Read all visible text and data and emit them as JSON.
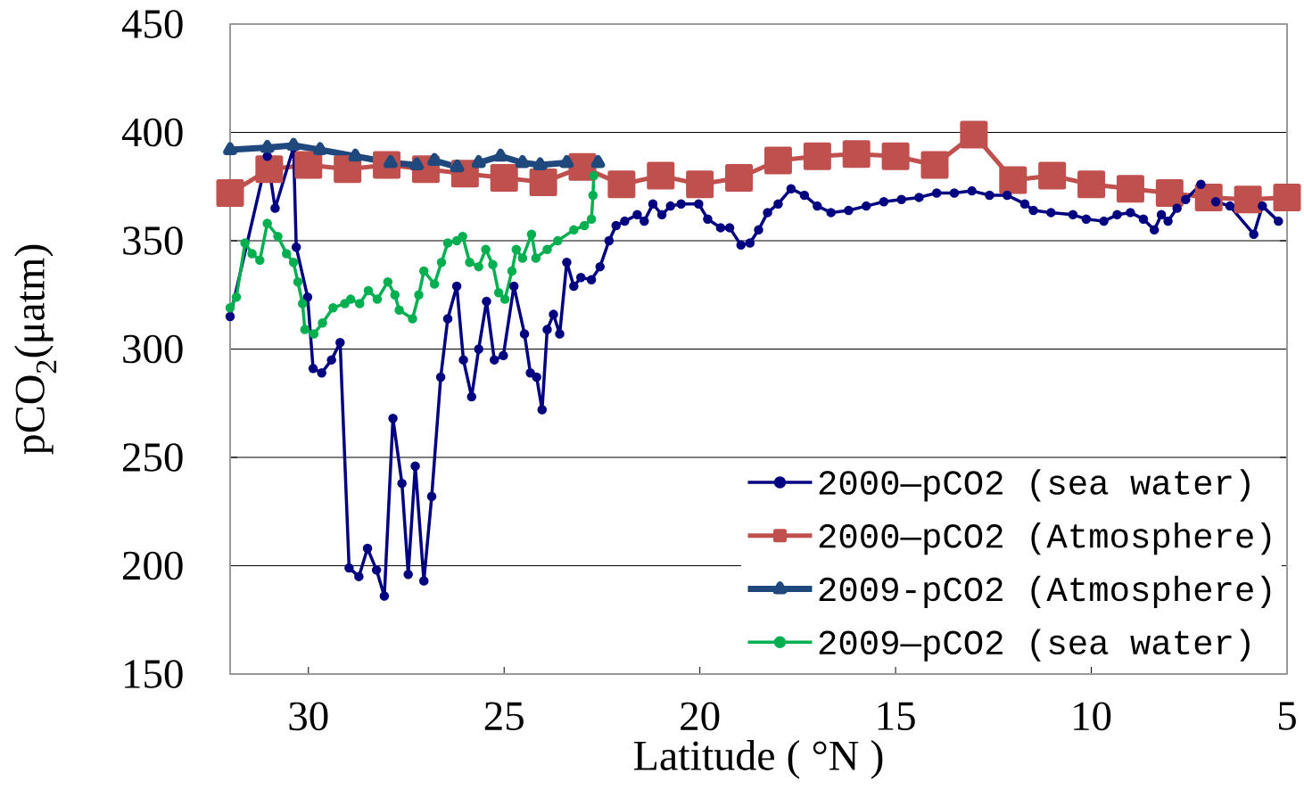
{
  "chart_data": {
    "type": "line",
    "xlabel": "Latitude ( °N )",
    "ylabel": "pCO$_{2}$(μatm)",
    "xlim": [
      32,
      5
    ],
    "xticks": [
      30,
      25,
      20,
      15,
      10,
      5
    ],
    "ylim": [
      150,
      450
    ],
    "yticks": [
      150,
      200,
      250,
      300,
      350,
      400,
      450
    ],
    "grid": "y",
    "legend": "bottom right",
    "line_style": "solid",
    "series": [
      {
        "name": "2000—pCO2 (sea water)",
        "color": "#000080",
        "marker": "circle",
        "x": [
          32.0,
          31.05,
          30.85,
          30.38,
          30.31,
          30.02,
          29.88,
          29.66,
          29.41,
          29.19,
          28.96,
          28.71,
          28.49,
          28.26,
          28.06,
          27.84,
          27.61,
          27.45,
          27.27,
          27.05,
          26.85,
          26.62,
          26.44,
          26.21,
          26.04,
          25.83,
          25.65,
          25.45,
          25.25,
          25.02,
          24.75,
          24.48,
          24.33,
          24.17,
          24.03,
          23.9,
          23.74,
          23.58,
          23.4,
          23.22,
          23.04,
          22.77,
          22.55,
          22.32,
          22.14,
          21.92,
          21.6,
          21.42,
          21.2,
          20.97,
          20.75,
          20.48,
          20.03,
          19.8,
          19.47,
          19.24,
          18.95,
          18.72,
          18.5,
          18.27,
          18.0,
          17.67,
          17.33,
          17.0,
          16.65,
          16.2,
          15.75,
          15.3,
          14.85,
          14.4,
          13.95,
          13.5,
          13.05,
          12.6,
          12.15,
          11.7,
          11.48,
          11.03,
          10.47,
          10.13,
          9.68,
          9.34,
          9.0,
          8.67,
          8.39,
          8.21,
          8.04,
          7.81,
          7.59,
          7.2,
          6.82,
          6.46,
          5.85,
          5.63,
          5.22
        ],
        "values": [
          315,
          389,
          365,
          393,
          347,
          324,
          291,
          289,
          295,
          303,
          199,
          195,
          208,
          198,
          186,
          268,
          238,
          196,
          246,
          193,
          232,
          287,
          314,
          329,
          295,
          278,
          300,
          322,
          295,
          297,
          329,
          307,
          289,
          287,
          272,
          309,
          316,
          307,
          340,
          329,
          333,
          332,
          338,
          350,
          357,
          359,
          362,
          359,
          367,
          362,
          366,
          367,
          367,
          360,
          356,
          356,
          348,
          349,
          355,
          363,
          367,
          374,
          371,
          366,
          363,
          364,
          366,
          368,
          369,
          370,
          372,
          372,
          373,
          371,
          371,
          367,
          364,
          363,
          362,
          360,
          359,
          362,
          363,
          360,
          355,
          362,
          359,
          365,
          369,
          376,
          368,
          366,
          353,
          366,
          359
        ]
      },
      {
        "name": "2000—pCO2 (Atmosphere)",
        "color": "#c0504d",
        "marker": "square",
        "x": [
          32,
          31,
          30,
          29,
          28,
          27,
          26,
          25,
          24,
          23,
          22,
          21,
          20,
          19,
          18,
          17,
          16,
          15,
          14,
          13,
          12,
          11,
          10,
          9,
          8,
          7,
          6,
          5
        ],
        "values": [
          372,
          383,
          385,
          383,
          385,
          383,
          381,
          379,
          377,
          384,
          376,
          380,
          376,
          379,
          387,
          389,
          390,
          389,
          385,
          399,
          378,
          380,
          376,
          374,
          372,
          370,
          369,
          370
        ]
      },
      {
        "name": "2009-pCO2 (Atmosphere)",
        "color": "#1f497d",
        "marker": "triangle",
        "x": [
          32,
          31.05,
          30.38,
          29.7,
          28.8,
          27.9,
          27.23,
          26.78,
          26.2,
          25.65,
          25.09,
          24.53,
          24.08,
          23.4,
          22.6
        ],
        "values": [
          392,
          393,
          394,
          392,
          389,
          386,
          385,
          387,
          384,
          386,
          389,
          386,
          385,
          386,
          386
        ]
      },
      {
        "name": "2009—pCO2 (sea water)",
        "color": "#00b050",
        "marker": "circle",
        "x": [
          32.0,
          31.84,
          31.62,
          31.44,
          31.24,
          31.05,
          30.78,
          30.56,
          30.38,
          30.27,
          30.15,
          30.09,
          29.86,
          29.64,
          29.37,
          29.07,
          28.92,
          28.69,
          28.47,
          28.24,
          27.97,
          27.79,
          27.68,
          27.34,
          27.18,
          27.05,
          26.78,
          26.6,
          26.44,
          26.21,
          26.06,
          25.88,
          25.65,
          25.47,
          25.29,
          25.14,
          24.98,
          24.8,
          24.69,
          24.53,
          24.3,
          24.19,
          23.9,
          23.63,
          23.22,
          22.95,
          22.77,
          22.73,
          22.71
        ],
        "values": [
          319,
          324,
          349,
          344,
          341,
          358,
          352,
          344,
          340,
          331,
          321,
          309,
          307,
          312,
          319,
          321,
          323,
          321,
          327,
          323,
          331,
          325,
          318,
          314,
          325,
          336,
          330,
          340,
          349,
          350,
          352,
          340,
          338,
          346,
          339,
          326,
          323,
          336,
          346,
          342,
          353,
          342,
          346,
          350,
          355,
          357,
          360,
          371,
          380
        ]
      }
    ]
  }
}
